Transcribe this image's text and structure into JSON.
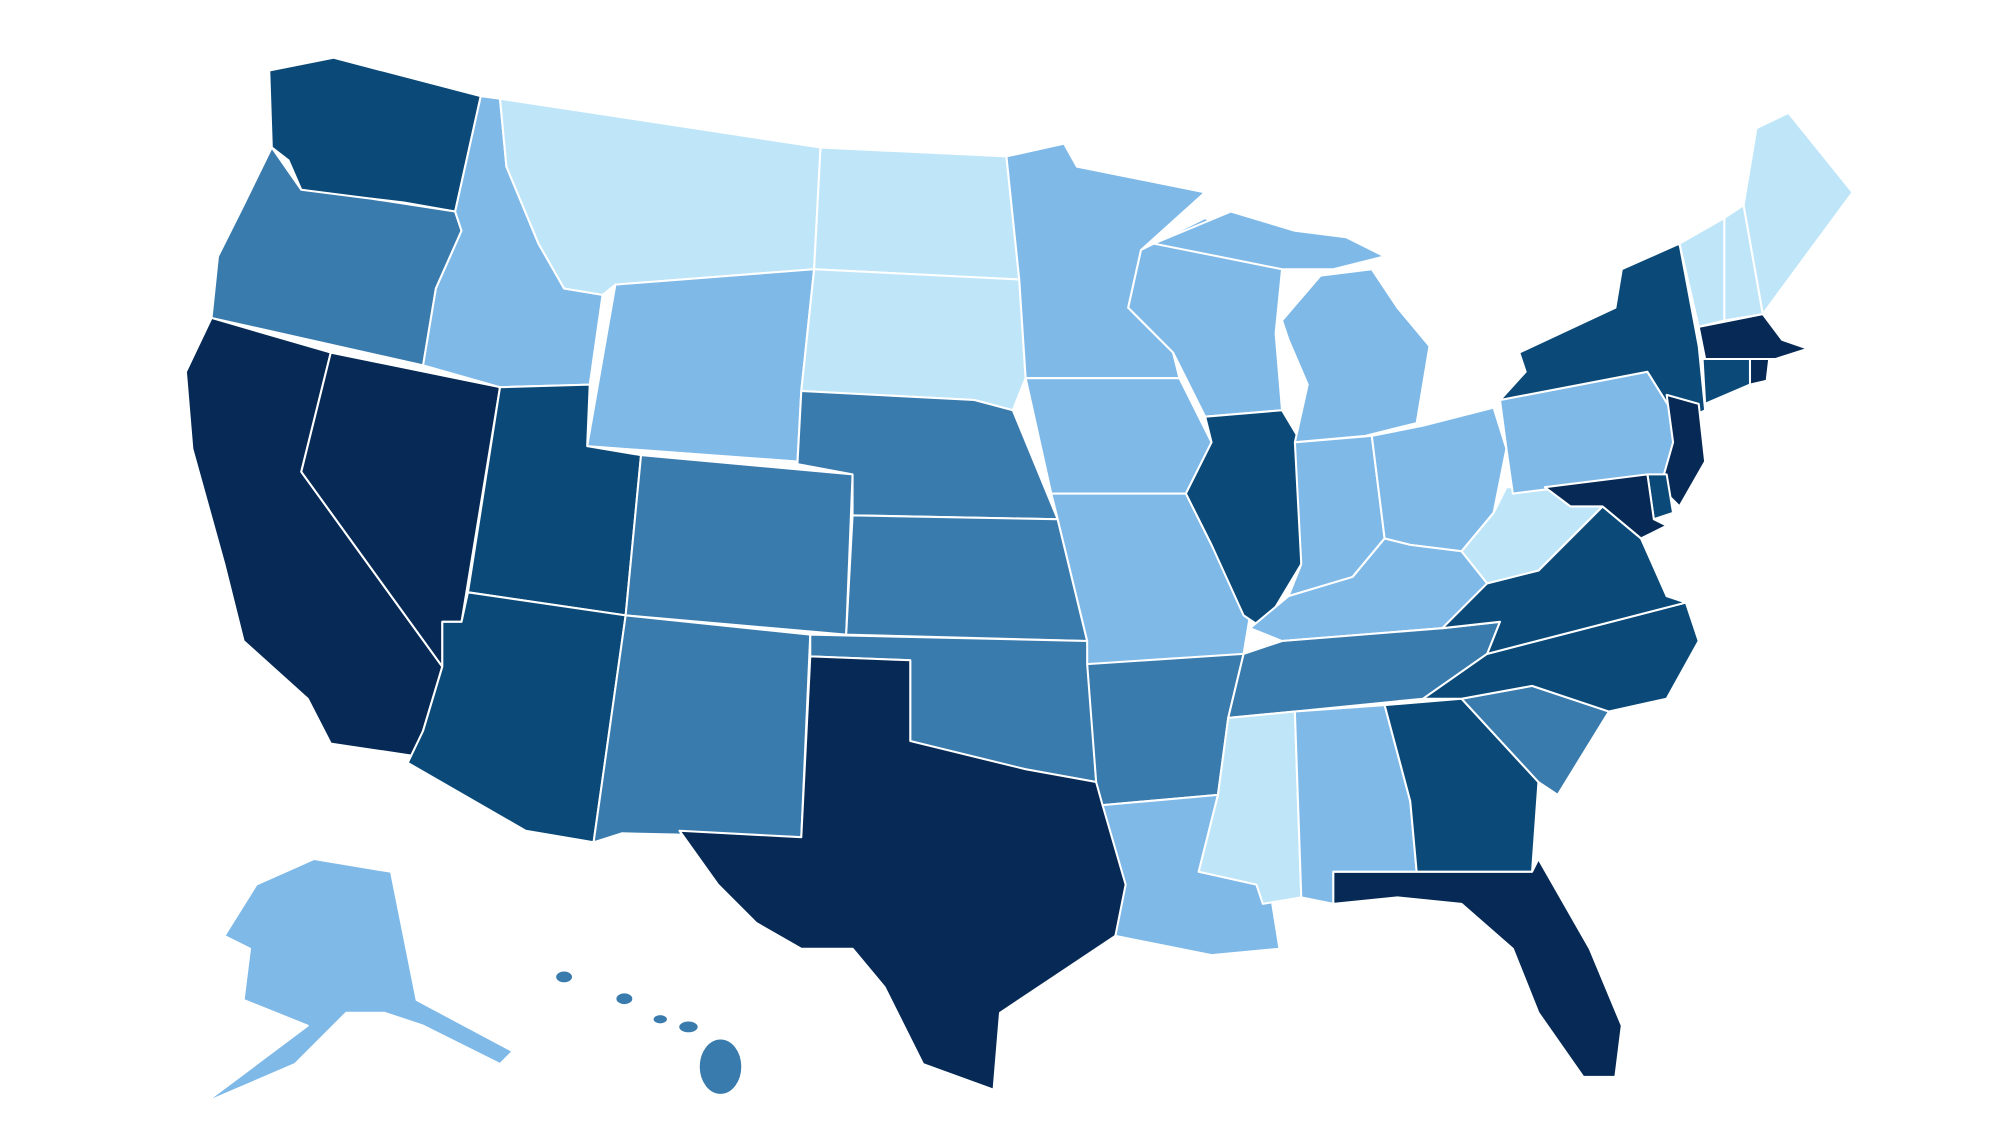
{
  "map": {
    "palette": [
      "#bfe6f8",
      "#7fb9e8",
      "#3a7bae",
      "#0b4a78",
      "#062a55"
    ],
    "border_color": "#ffffff",
    "background": "#ffffff"
  }
}
